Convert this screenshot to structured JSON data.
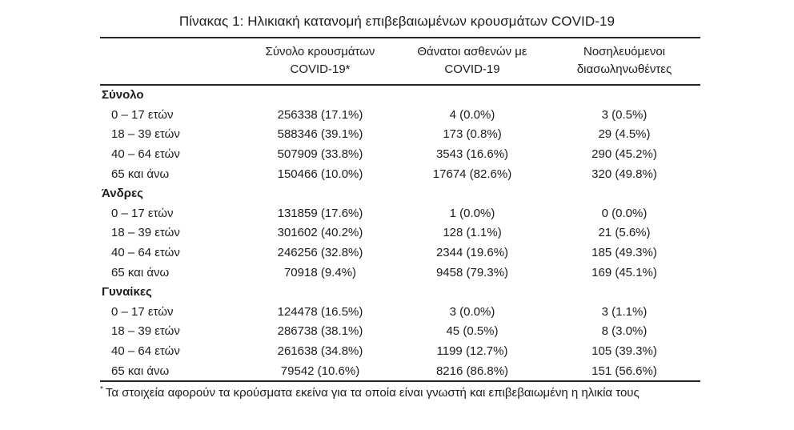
{
  "title": "Πίνακας 1: Ηλικιακή κατανομή επιβεβαιωμένων κρουσμάτων COVID-19",
  "colors": {
    "text": "#1c1c1c",
    "rule": "#262626",
    "background": "#ffffff"
  },
  "table": {
    "columns": [
      {
        "line1": "Σύνολο κρουσμάτων",
        "line2": "COVID-19*"
      },
      {
        "line1": "Θάνατοι ασθενών με",
        "line2": "COVID-19"
      },
      {
        "line1": "Νοσηλευόμενοι",
        "line2": "διασωληνωθέντες"
      }
    ],
    "sections": [
      {
        "label": "Σύνολο",
        "rows": [
          {
            "label": "0 – 17 ετών",
            "cases": "256338 (17.1%)",
            "deaths": "4 (0.0%)",
            "intubated": "3 (0.5%)"
          },
          {
            "label": "18 – 39 ετών",
            "cases": "588346 (39.1%)",
            "deaths": "173 (0.8%)",
            "intubated": "29 (4.5%)"
          },
          {
            "label": "40 – 64 ετών",
            "cases": "507909 (33.8%)",
            "deaths": "3543 (16.6%)",
            "intubated": "290 (45.2%)"
          },
          {
            "label": "65 και άνω",
            "cases": "150466 (10.0%)",
            "deaths": "17674 (82.6%)",
            "intubated": "320 (49.8%)"
          }
        ]
      },
      {
        "label": "Άνδρες",
        "rows": [
          {
            "label": "0 – 17 ετών",
            "cases": "131859 (17.6%)",
            "deaths": "1 (0.0%)",
            "intubated": "0 (0.0%)"
          },
          {
            "label": "18 – 39 ετών",
            "cases": "301602 (40.2%)",
            "deaths": "128 (1.1%)",
            "intubated": "21 (5.6%)"
          },
          {
            "label": "40 – 64 ετών",
            "cases": "246256 (32.8%)",
            "deaths": "2344 (19.6%)",
            "intubated": "185 (49.3%)"
          },
          {
            "label": "65 και άνω",
            "cases": "70918 (9.4%)",
            "deaths": "9458 (79.3%)",
            "intubated": "169 (45.1%)"
          }
        ]
      },
      {
        "label": "Γυναίκες",
        "rows": [
          {
            "label": "0 – 17 ετών",
            "cases": "124478 (16.5%)",
            "deaths": "3 (0.0%)",
            "intubated": "3 (1.1%)"
          },
          {
            "label": "18 – 39 ετών",
            "cases": "286738 (38.1%)",
            "deaths": "45 (0.5%)",
            "intubated": "8 (3.0%)"
          },
          {
            "label": "40 – 64 ετών",
            "cases": "261638 (34.8%)",
            "deaths": "1199 (12.7%)",
            "intubated": "105 (39.3%)"
          },
          {
            "label": "65 και άνω",
            "cases": "79542 (10.6%)",
            "deaths": "8216 (86.8%)",
            "intubated": "151 (56.6%)"
          }
        ]
      }
    ]
  },
  "footnote": {
    "marker": "*",
    "text": "Τα στοιχεία αφορούν τα κρούσματα εκείνα για τα οποία είναι γνωστή και επιβεβαιωμένη η ηλικία τους"
  }
}
